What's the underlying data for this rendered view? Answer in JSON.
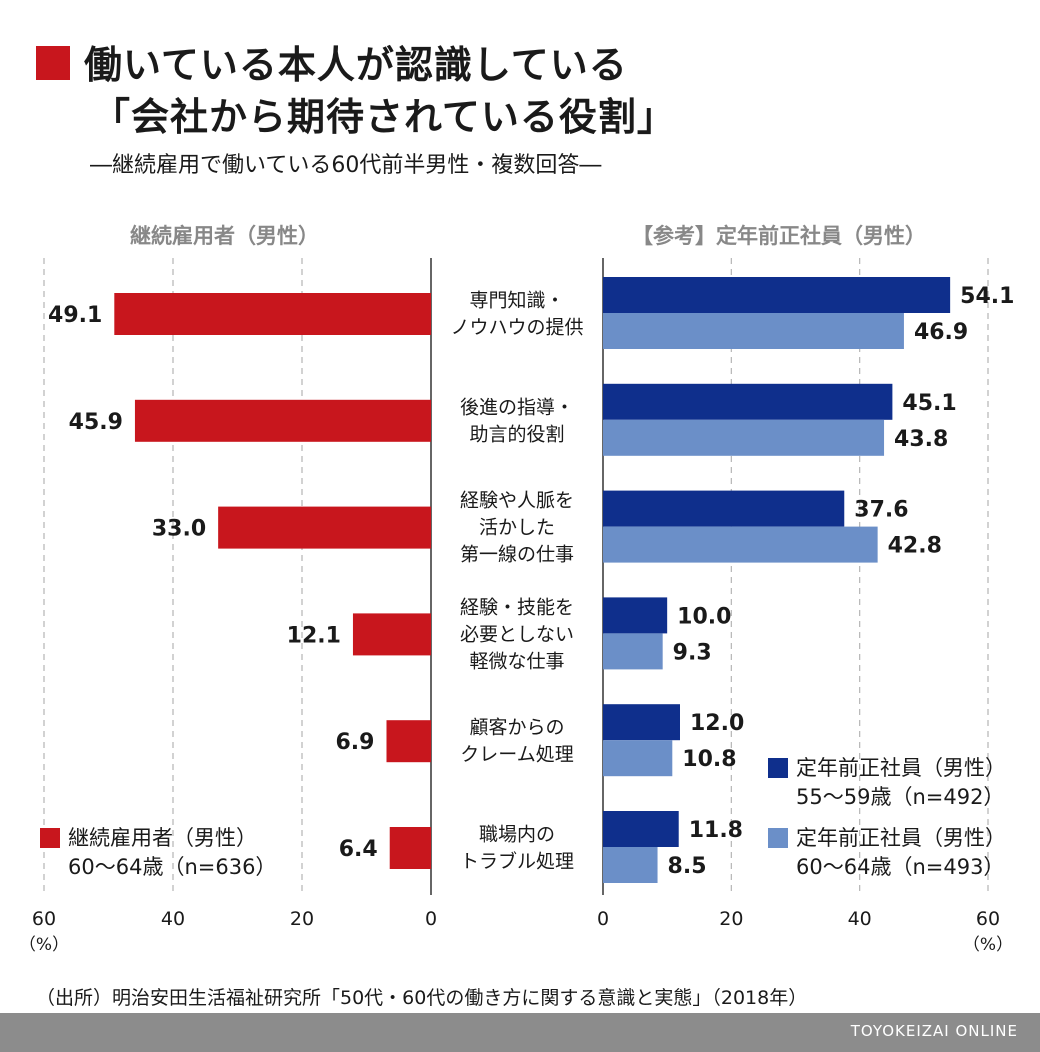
{
  "title": {
    "line1": "働いている本人が認識している",
    "line2": "「会社から期待されている役割」"
  },
  "subtitle": "―継続雇用で働いている60代前半男性・複数回答―",
  "panels": {
    "left_header": "継続雇用者（男性）",
    "right_header": "【参考】定年前正社員（男性）"
  },
  "source": "（出所）明治安田生活福祉研究所「50代・60代の働き方に関する意識と実態」（2018年）",
  "brand": "TOYOKEIZAI ONLINE",
  "colors": {
    "red": "#c8161d",
    "dark_blue": "#0f2f8c",
    "light_blue": "#6b8fc8",
    "grid": "#b5b5b5",
    "axis": "#333333"
  },
  "chart_data": {
    "type": "bar",
    "orientation": "horizontal",
    "categories": [
      [
        "専門知識・",
        "ノウハウの提供"
      ],
      [
        "後進の指導・",
        "助言的役割"
      ],
      [
        "経験や人脈を",
        "活かした",
        "第一線の仕事"
      ],
      [
        "経験・技能を",
        "必要としない",
        "軽微な仕事"
      ],
      [
        "顧客からの",
        "クレーム処理"
      ],
      [
        "職場内の",
        "トラブル処理"
      ]
    ],
    "left_panel": {
      "xlim": [
        0,
        60
      ],
      "ticks": [
        "60",
        "40",
        "20",
        "0"
      ],
      "unit": "（%）",
      "series": [
        {
          "legend": [
            "継続雇用者（男性）",
            "60〜64歳（n=636）"
          ],
          "color": "#c8161d",
          "values": [
            49.1,
            45.9,
            33.0,
            12.1,
            6.9,
            6.4
          ],
          "labels": [
            "49.1",
            "45.9",
            "33.0",
            "12.1",
            "6.9",
            "6.4"
          ]
        }
      ]
    },
    "right_panel": {
      "xlim": [
        0,
        60
      ],
      "ticks": [
        "0",
        "20",
        "40",
        "60"
      ],
      "unit": "（%）",
      "series": [
        {
          "legend": [
            "定年前正社員（男性）",
            "55〜59歳（n=492）"
          ],
          "color": "#0f2f8c",
          "values": [
            54.1,
            45.1,
            37.6,
            10.0,
            12.0,
            11.8
          ],
          "labels": [
            "54.1",
            "45.1",
            "37.6",
            "10.0",
            "12.0",
            "11.8"
          ]
        },
        {
          "legend": [
            "定年前正社員（男性）",
            "60〜64歳（n=493）"
          ],
          "color": "#6b8fc8",
          "values": [
            46.9,
            43.8,
            42.8,
            9.3,
            10.8,
            8.5
          ],
          "labels": [
            "46.9",
            "43.8",
            "42.8",
            "9.3",
            "10.8",
            "8.5"
          ]
        }
      ]
    },
    "grid": true
  }
}
